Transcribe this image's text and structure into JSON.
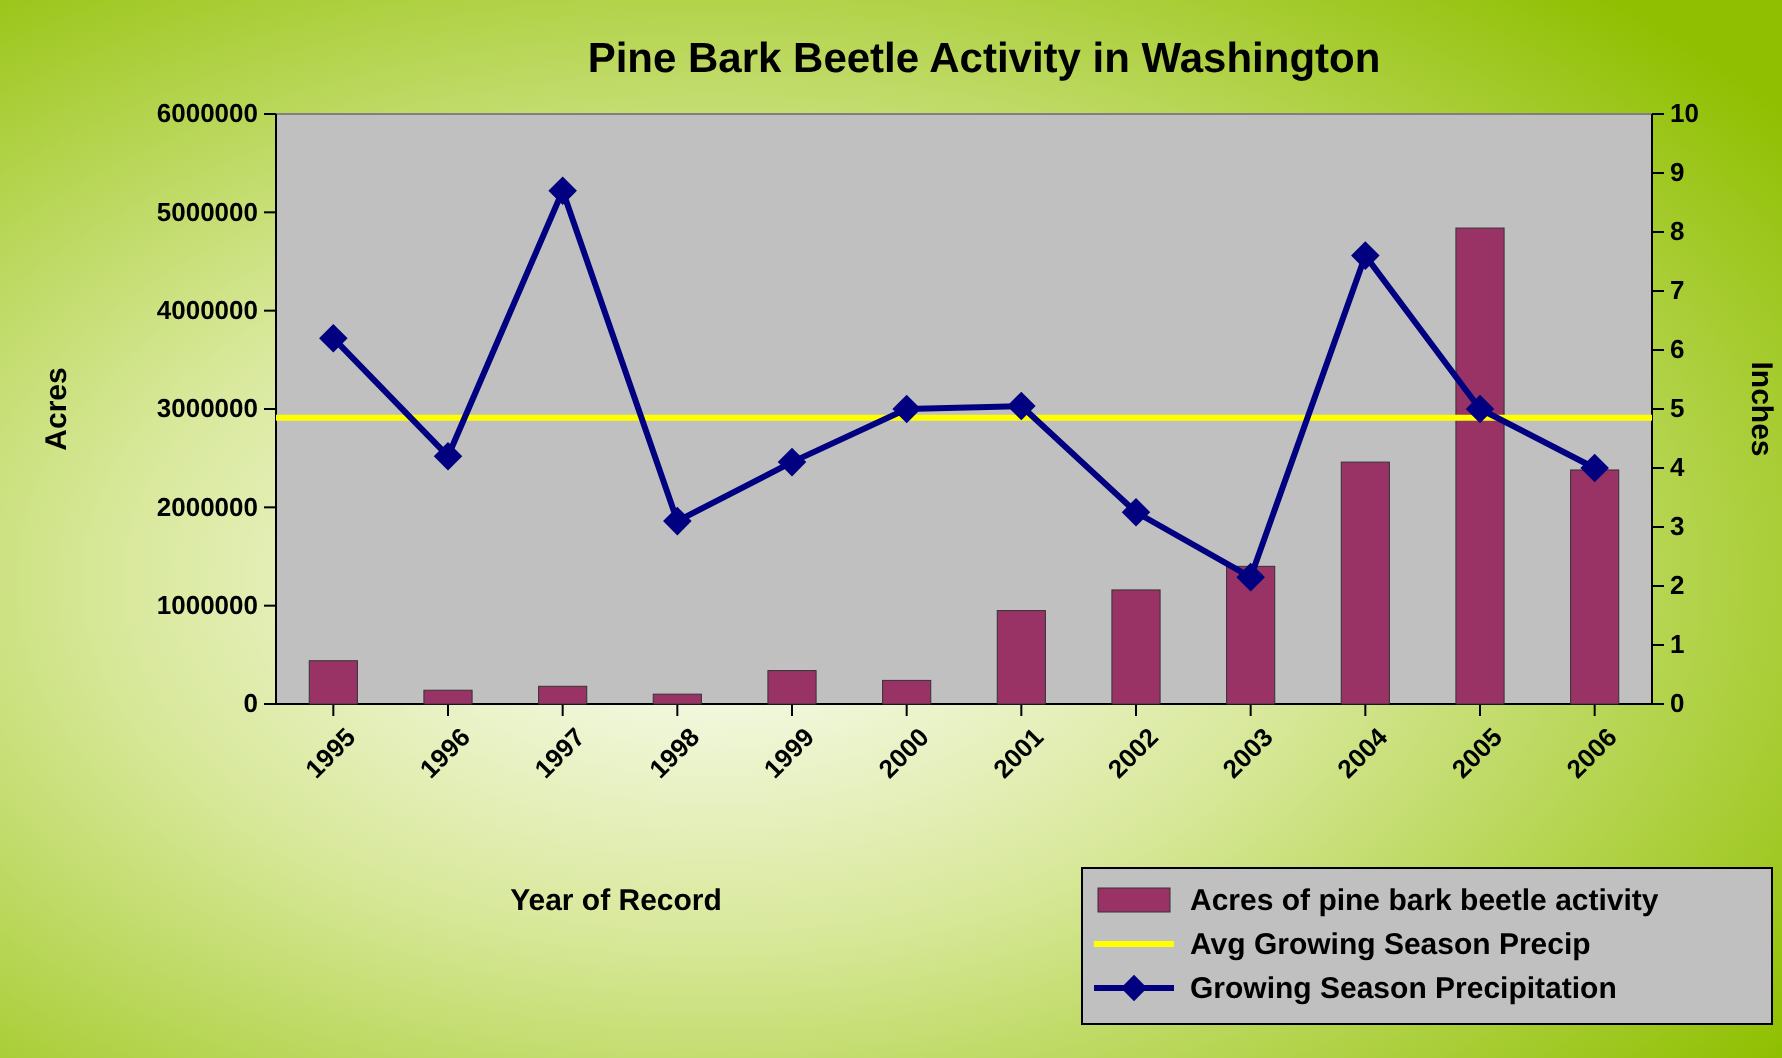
{
  "chart_data": {
    "type": "bar",
    "title": "Pine Bark Beetle Activity in Washington",
    "xlabel": "Year of Record",
    "ylabel": "Acres",
    "y2label": "Inches",
    "categories": [
      "1995",
      "1996",
      "1997",
      "1998",
      "1999",
      "2000",
      "2001",
      "2002",
      "2003",
      "2004",
      "2005",
      "2006"
    ],
    "series": [
      {
        "name": "Acres of pine bark beetle activity",
        "color": "#993366",
        "values": [
          440000,
          140000,
          180000,
          100000,
          340000,
          240000,
          950000,
          1160000,
          1400000,
          2460000,
          4840000,
          2380000
        ]
      },
      {
        "name": "Growing Season Precipitation",
        "type": "line",
        "axis": "y2",
        "color": "#000080",
        "marker": "diamond",
        "values": [
          6.2,
          4.2,
          8.7,
          3.1,
          4.1,
          5.0,
          5.05,
          3.25,
          2.15,
          7.6,
          5.0,
          4.0
        ]
      }
    ],
    "ref_lines": [
      {
        "axis": "y2",
        "value": 4.85,
        "label": "Avg Growing Season Precip",
        "color": "#ffff00"
      }
    ],
    "ylim": [
      0,
      6000000
    ],
    "yticks": [
      0,
      1000000,
      2000000,
      3000000,
      4000000,
      5000000,
      6000000
    ],
    "y2lim": [
      0,
      10
    ],
    "y2ticks": [
      0,
      1,
      2,
      3,
      4,
      5,
      6,
      7,
      8,
      9,
      10
    ],
    "legend": "bottom right",
    "grid": false
  }
}
